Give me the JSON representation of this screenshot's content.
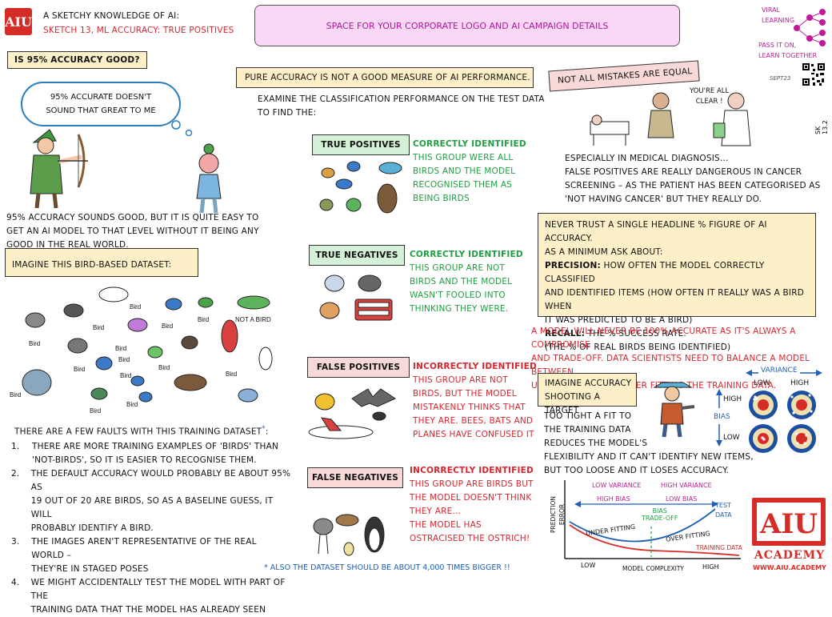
{
  "header": {
    "logo_text": "AIU",
    "series": "A sketchy knowledge of AI:",
    "subtitle": "Sketch 13, ML Accuracy: True Positives",
    "banner": "Space for your corporate logo and AI campaign details",
    "viral": [
      "Viral",
      "Learning"
    ],
    "pass_on": [
      "Pass it on,",
      "Learn together"
    ],
    "signature": "Sept23",
    "sk_code": "SK 13.2"
  },
  "left": {
    "q_label": "Is 95% accuracy good?",
    "thought": [
      "95% accurate doesn't",
      "sound that great to me"
    ],
    "para": [
      "95% accuracy sounds good, but it is quite easy to",
      "get an AI model to that level without it being any",
      "good in the real world."
    ],
    "dataset_label": "Imagine this bird-based dataset:",
    "bird_label": "Bird",
    "not_a_bird": "Not a bird",
    "faults_intro": "There are a few faults with this training dataset",
    "star": "*",
    "colon": ":",
    "faults": [
      {
        "num": "1.",
        "lines": [
          "There are more training examples of 'birds' than",
          "'not-birds', so it is easier to recognise them."
        ]
      },
      {
        "num": "2.",
        "lines": [
          "The default accuracy would probably be about 95% as",
          "19 out of 20 are birds, so as a baseline guess, it will",
          "probably identify a bird."
        ]
      },
      {
        "num": "3.",
        "lines": [
          "The images aren't representative of the real world –",
          "they're in staged poses"
        ]
      },
      {
        "num": "4.",
        "lines": [
          "We might accidentally test the model with part of the",
          "training data that the model has already seen"
        ]
      }
    ],
    "footnote": "Also the dataset should be about 4,000 times bigger !!"
  },
  "middle": {
    "title": "Pure accuracy is not a good measure of AI performance.",
    "intro": [
      "Examine the classification performance on the test data",
      "to find the:"
    ],
    "sections": [
      {
        "label": "True Positives",
        "heading": "Correctly Identified",
        "lines": [
          "This group were all",
          "birds and the model",
          "recognised them as",
          "being birds"
        ]
      },
      {
        "label": "True Negatives",
        "heading": "Correctly Identified",
        "lines": [
          "This group are not",
          "birds and the model",
          "wasn't fooled into",
          "thinking they were."
        ]
      },
      {
        "label": "False Positives",
        "heading": "Incorrectly Identified",
        "lines": [
          "This group are not",
          "birds, but the model",
          "mistakenly thinks that",
          "they are.  Bees, bats and",
          "planes have confused it"
        ]
      },
      {
        "label": "False Negatives",
        "heading": "Incorrectly Identified",
        "lines": [
          "This group are birds but",
          "the model doesn't think",
          "they are…",
          "The model has",
          "ostracised the ostrich!"
        ]
      }
    ]
  },
  "right": {
    "mistakes_label": "Not all mistakes are equal",
    "doctor_speech": [
      "You're all",
      "clear !"
    ],
    "medical": [
      "Especially in medical diagnosis…",
      "False positives are really dangerous in cancer",
      "screening – as the patient has been categorised as",
      "'not having cancer' but they really do."
    ],
    "trust": {
      "line1": "Never trust a single headline %  figure of AI accuracy.",
      "line2": "As a minimum ask about:",
      "precision_label": "Precision:",
      "precision_text": " How often the model correctly classified",
      "precision_more": [
        "and identified items (how often it really was a bird when",
        "it was predicted to be a bird)"
      ],
      "recall_label": "Recall:",
      "recall_text": " The % success rate.",
      "recall_more": "(the % of real birds being identified)"
    },
    "compromise": [
      "A model will never be 100% accurate as it's always a compromise",
      "and trade-off. Data scientists need to balance a model between",
      "under fitting and over fitting the training data."
    ],
    "target_label": [
      "Imagine accuracy",
      "shooting a target"
    ],
    "fit": [
      "Too tight a fit to",
      "the training data",
      "reduces the model's",
      "flexibility and it can't identify new items,",
      "but too loose and it loses accuracy."
    ],
    "variance": "Variance",
    "low": "Low",
    "high": "High",
    "bias": "Bias",
    "curve": {
      "low_var": "Low variance",
      "high_bias": "High bias",
      "high_var": "High variance",
      "low_bias": "Low bias",
      "bias": "Bias",
      "tradeoff": "Trade-off",
      "under": "Under fitting",
      "over": "Over fitting",
      "test": [
        "Test",
        "data"
      ],
      "training": "Training data",
      "yaxis": [
        "Prediction",
        "Error"
      ],
      "xlow": "Low",
      "xlabel": "Model complexity",
      "xhigh": "High"
    },
    "academy": "Academy",
    "url": "www.aiu.academy"
  }
}
